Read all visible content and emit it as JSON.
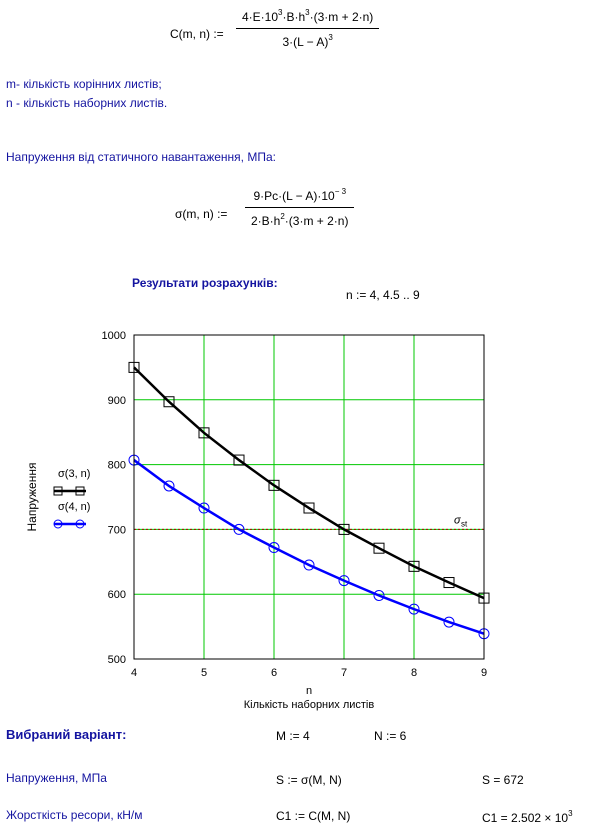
{
  "formula_c": {
    "lhs": "C(m, n) :=",
    "num_a": "4·E·10",
    "num_a_sup": "3",
    "num_b": "·B·h",
    "num_b_sup": "3",
    "num_c": "·(3·m + 2·n)",
    "den_a": "3·(L − A)",
    "den_a_sup": "3"
  },
  "notes": {
    "m": "m- кількість корінних листів;",
    "n": "n - кількість наборних листів."
  },
  "stress_heading": "Напруження від статичного навантаження, МПа:",
  "formula_sigma": {
    "lhs": "σ(m, n) :=",
    "num_a": "9·Pc·(L − A)·10",
    "num_a_sup": "− 3",
    "den_a": "2·B·h",
    "den_a_sup": "2",
    "den_b": "·(3·m + 2·n)"
  },
  "results_heading": "Результати розрахунків:",
  "range_def": "n := 4, 4.5 .. 9",
  "chart_data": {
    "type": "line",
    "xlabel": "n",
    "xlabel2": "Кількість наборних листів",
    "ylabel": "Напруження",
    "xlim": [
      4,
      9
    ],
    "ylim": [
      500,
      1000
    ],
    "x_ticks": [
      "4",
      "5",
      "6",
      "7",
      "8",
      "9"
    ],
    "y_ticks": [
      "500",
      "600",
      "700",
      "800",
      "900",
      "1000"
    ],
    "grid": true,
    "legend_position": "left",
    "x": [
      4,
      4.5,
      5,
      5.5,
      6,
      6.5,
      7,
      7.5,
      8,
      8.5,
      9
    ],
    "series": [
      {
        "name": "σ(3, n)",
        "color": "#000000",
        "marker": "square",
        "values": [
          950,
          897,
          849,
          807,
          768,
          733,
          700,
          671,
          643,
          618,
          594
        ]
      },
      {
        "name": "σ(4, n)",
        "color": "#0000ff",
        "marker": "circle",
        "values": [
          807,
          767,
          733,
          700,
          672,
          645,
          621,
          598,
          577,
          557,
          539
        ]
      }
    ],
    "reference_line": {
      "label": "σ",
      "label_sub": "st",
      "value": 700,
      "color": "#b00000"
    }
  },
  "chosen_heading": "Вибраний варіант:",
  "chosen_m": "M := 4",
  "chosen_n": "N := 6",
  "row_stress_label": "Напруження, МПа",
  "row_stress_def": "S := σ(M, N)",
  "row_stress_val": "S = 672",
  "row_stiff_label": "Жорсткість ресори, кН/м",
  "row_stiff_def": "C1 := C(M, N)",
  "row_stiff_val": "C1 = 2.502 × 10",
  "row_stiff_sup": "3"
}
